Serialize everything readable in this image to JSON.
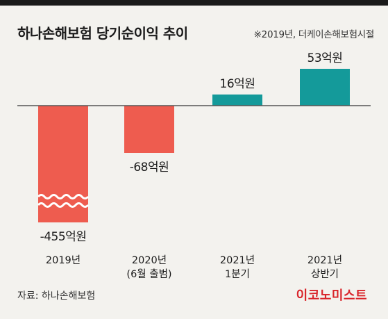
{
  "header": {
    "title": "하나손해보험 당기순이익 추이",
    "note": "※2019년, 더케이손해보험시절"
  },
  "footer": {
    "source": "자료: 하나손해보험",
    "brand": "이코노미스트"
  },
  "colors": {
    "negative": "#ee5c4f",
    "positive": "#149a9a",
    "baseline": "#555555",
    "background": "#f3f2ee",
    "brand": "#d9252b"
  },
  "chart_data": {
    "type": "bar",
    "categories": [
      [
        "2019년"
      ],
      [
        "2020년",
        "(6월 출범)"
      ],
      [
        "2021년",
        "1분기"
      ],
      [
        "2021년",
        "상반기"
      ]
    ],
    "values": [
      -455,
      -68,
      16,
      53
    ],
    "value_labels": [
      "-455억원",
      "-68억원",
      "16억원",
      "53억원"
    ],
    "unit": "억원",
    "axis_break_on": "2019년",
    "grid": false,
    "legend": "none"
  }
}
